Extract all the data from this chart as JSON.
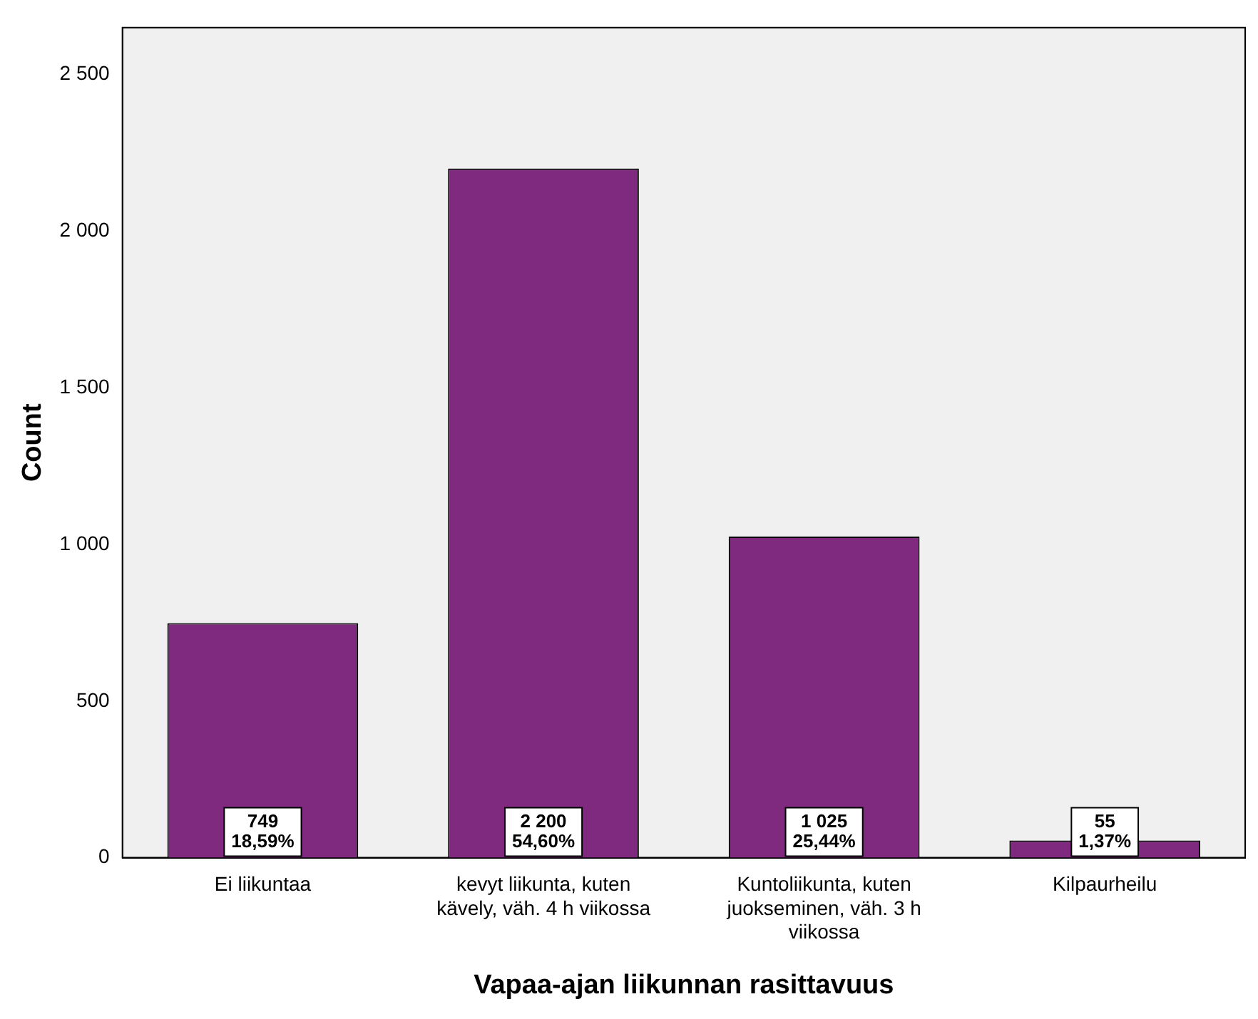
{
  "chart_data": {
    "type": "bar",
    "xlabel": "Vapaa-ajan liikunnan rasittavuus",
    "ylabel": "Count",
    "categories": [
      "Ei liikuntaa",
      "kevyt liikunta, kuten kävely, väh. 4 h viikossa",
      "Kuntoliikunta, kuten juokseminen, väh. 3 h viikossa",
      "Kilpaurheilu"
    ],
    "values": [
      749,
      2200,
      1025,
      55
    ],
    "value_labels": [
      "749\n18,59%",
      "2 200\n54,60%",
      "1 025\n25,44%",
      "55\n1,37%"
    ],
    "color": "#7f297f",
    "ylim": [
      0,
      2650
    ],
    "yticks": [
      {
        "value": 0,
        "label": "0"
      },
      {
        "value": 500,
        "label": "500"
      },
      {
        "value": 1000,
        "label": "1 000"
      },
      {
        "value": 1500,
        "label": "1 500"
      },
      {
        "value": 2000,
        "label": "2 000"
      },
      {
        "value": 2500,
        "label": "2 500"
      }
    ],
    "grid": false,
    "legend": false
  }
}
